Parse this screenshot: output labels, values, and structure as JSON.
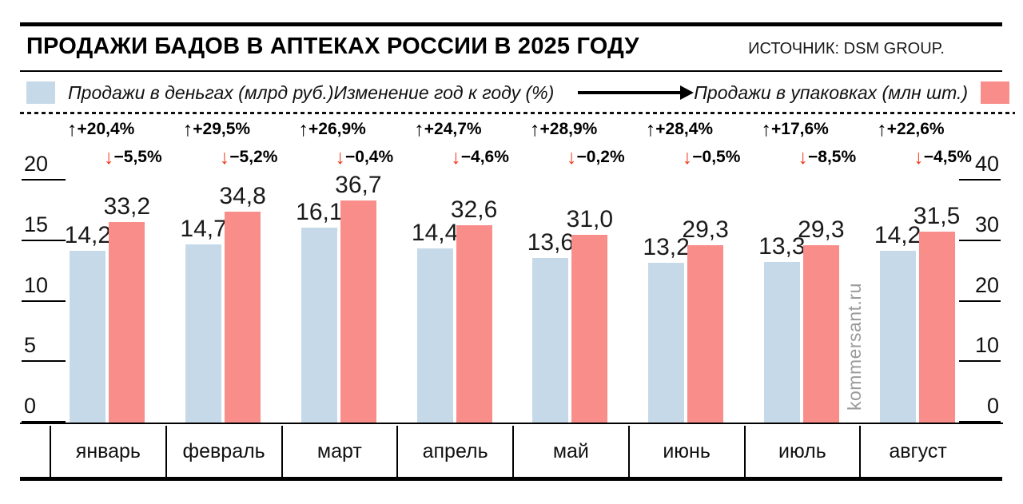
{
  "meta": {
    "title": "ПРОДАЖИ БАДОВ В АПТЕКАХ РОССИИ В 2025 ГОДУ",
    "source": "ИСТОЧНИК: DSM GROUP."
  },
  "legend": {
    "money": "Продажи в деньгах (млрд руб.)",
    "yoy": "Изменение год к году (%)",
    "packs": "Продажи в упаковках (млн шт.)"
  },
  "colors": {
    "money_bar": "#c6d9e8",
    "packs_bar": "#f98d8a",
    "up_arrow": "#000000",
    "down_arrow": "#ee3c1b",
    "watermark": "#9b9b9b"
  },
  "watermark": "kommersant.ru",
  "axes": {
    "left": {
      "ticks": [
        "20",
        "15",
        "10",
        "5",
        "0"
      ],
      "max": 20
    },
    "right": {
      "ticks": [
        "40",
        "30",
        "20",
        "10",
        "0"
      ],
      "max": 40
    }
  },
  "months": [
    {
      "label": "январь",
      "up": "+20,4%",
      "down": "−5,5%",
      "money": "14,2",
      "packs": "33,2"
    },
    {
      "label": "февраль",
      "up": "+29,5%",
      "down": "−5,2%",
      "money": "14,7",
      "packs": "34,8"
    },
    {
      "label": "март",
      "up": "+26,9%",
      "down": "−0,4%",
      "money": "16,1",
      "packs": "36,7"
    },
    {
      "label": "апрель",
      "up": "+24,7%",
      "down": "−4,6%",
      "money": "14,4",
      "packs": "32,6"
    },
    {
      "label": "май",
      "up": "+28,9%",
      "down": "−0,2%",
      "money": "13,6",
      "packs": "31,0"
    },
    {
      "label": "июнь",
      "up": "+28,4%",
      "down": "−0,5%",
      "money": "13,2",
      "packs": "29,3"
    },
    {
      "label": "июль",
      "up": "+17,6%",
      "down": "−8,5%",
      "money": "13,3",
      "packs": "29,3"
    },
    {
      "label": "август",
      "up": "+22,6%",
      "down": "−4,5%",
      "money": "14,2",
      "packs": "31,5"
    }
  ],
  "chart_data": {
    "type": "bar",
    "title": "ПРОДАЖИ БАДОВ В АПТЕКАХ РОССИИ В 2025 ГОДУ",
    "source": "DSM GROUP",
    "categories": [
      "январь",
      "февраль",
      "март",
      "апрель",
      "май",
      "июнь",
      "июль",
      "август"
    ],
    "series": [
      {
        "name": "Продажи в деньгах (млрд руб.)",
        "axis": "left",
        "color": "#c6d9e8",
        "values": [
          14.2,
          14.7,
          16.1,
          14.4,
          13.6,
          13.2,
          13.3,
          14.2
        ]
      },
      {
        "name": "Продажи в упаковках (млн шт.)",
        "axis": "right",
        "color": "#f98d8a",
        "values": [
          33.2,
          34.8,
          36.7,
          32.6,
          31.0,
          29.3,
          29.3,
          31.5
        ]
      },
      {
        "name": "Изменение год к году, деньги (%)",
        "values": [
          20.4,
          29.5,
          26.9,
          24.7,
          28.9,
          28.4,
          17.6,
          22.6
        ]
      },
      {
        "name": "Изменение год к году, упаковки (%)",
        "values": [
          -5.5,
          -5.2,
          -0.4,
          -4.6,
          -0.2,
          -0.5,
          -8.5,
          -4.5
        ]
      }
    ],
    "left_axis": {
      "range": [
        0,
        20
      ],
      "ticks": [
        0,
        5,
        10,
        15,
        20
      ],
      "unit": "млрд руб."
    },
    "right_axis": {
      "range": [
        0,
        40
      ],
      "ticks": [
        0,
        10,
        20,
        30,
        40
      ],
      "unit": "млн шт."
    },
    "grid": false,
    "legend_position": "top"
  }
}
